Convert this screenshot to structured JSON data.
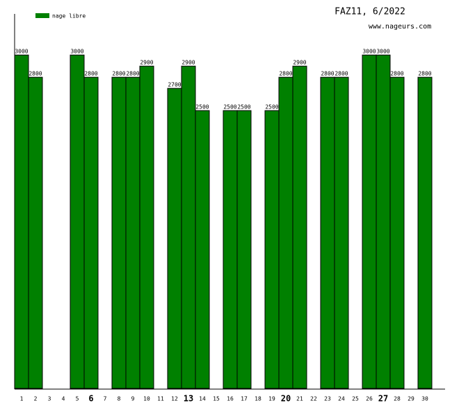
{
  "chart_data": {
    "type": "bar",
    "title": "FAZ11, 6/2022",
    "subtitle": "www.nageurs.com",
    "categories": [
      "1",
      "2",
      "3",
      "4",
      "5",
      "6",
      "7",
      "8",
      "9",
      "10",
      "11",
      "12",
      "13",
      "14",
      "15",
      "16",
      "17",
      "18",
      "19",
      "20",
      "21",
      "22",
      "23",
      "24",
      "25",
      "26",
      "27",
      "28",
      "29",
      "30"
    ],
    "bold_categories": [
      "6",
      "13",
      "20",
      "27"
    ],
    "series": [
      {
        "name": "nage libre",
        "color": "#008000",
        "values": [
          3000,
          2800,
          null,
          null,
          3000,
          2800,
          null,
          2800,
          2800,
          2900,
          null,
          2700,
          2900,
          2500,
          null,
          2500,
          2500,
          null,
          2500,
          2800,
          2900,
          null,
          2800,
          2800,
          null,
          3000,
          3000,
          2800,
          null,
          2800
        ]
      }
    ],
    "ylim": [
      0,
      3370
    ]
  }
}
